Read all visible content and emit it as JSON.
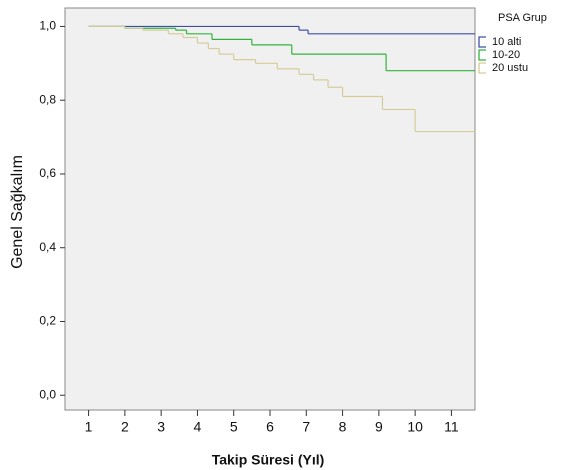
{
  "chart_data": {
    "type": "step",
    "x_label": "Takip Süresi (Yıl)",
    "y_label": "Genel Sağkalım",
    "legend_title": "PSA Grup",
    "legend": "right",
    "xlim": [
      0.35,
      11.65
    ],
    "ylim": [
      -0.04,
      1.05
    ],
    "xticks": [
      1,
      2,
      3,
      4,
      5,
      6,
      7,
      8,
      9,
      10,
      11
    ],
    "yticks": [
      {
        "value": 0,
        "label": "0,0"
      },
      {
        "value": 0.2,
        "label": "0,2"
      },
      {
        "value": 0.4,
        "label": "0,4"
      },
      {
        "value": 0.6,
        "label": "0,6"
      },
      {
        "value": 0.8,
        "label": "0,8"
      },
      {
        "value": 1,
        "label": "1,0"
      }
    ],
    "series": [
      {
        "name": "10 alti",
        "color": "#3f4fa8",
        "x": [
          1,
          6.8,
          7.05,
          11.65
        ],
        "values": [
          1,
          0.99,
          0.98,
          0.98
        ]
      },
      {
        "name": "10-20",
        "color": "#32b43c",
        "x": [
          1,
          2,
          3.4,
          3.7,
          4.4,
          5.5,
          6.6,
          9.2,
          11.65
        ],
        "values": [
          1,
          0.995,
          0.99,
          0.98,
          0.965,
          0.95,
          0.925,
          0.88,
          0.88
        ]
      },
      {
        "name": "20 ustu",
        "color": "#d6cc9a",
        "x": [
          1,
          2,
          2.5,
          3.2,
          3.6,
          4.0,
          4.3,
          4.6,
          5.0,
          5.6,
          6.2,
          6.8,
          7.2,
          7.6,
          8.0,
          9.1,
          10.0,
          11.65
        ],
        "values": [
          1,
          0.995,
          0.99,
          0.98,
          0.97,
          0.955,
          0.94,
          0.925,
          0.91,
          0.9,
          0.885,
          0.87,
          0.855,
          0.835,
          0.81,
          0.775,
          0.715,
          0.715
        ]
      }
    ]
  }
}
